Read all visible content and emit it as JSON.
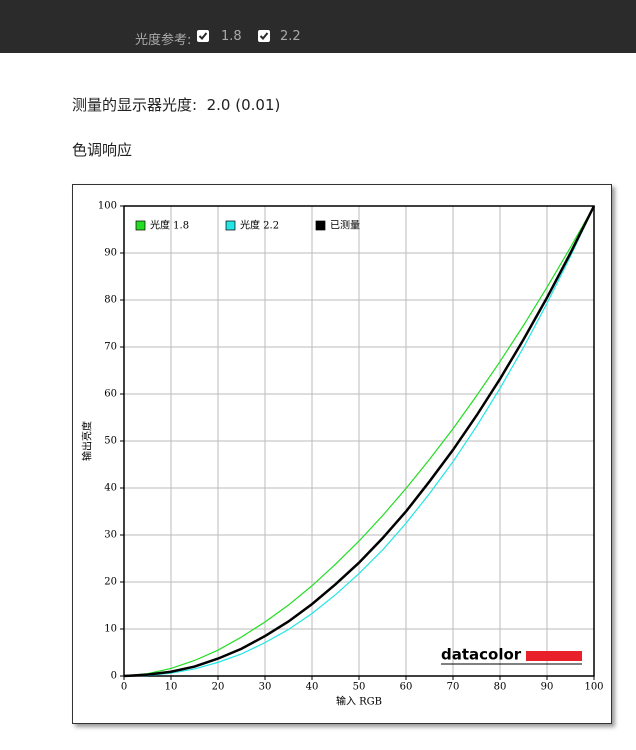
{
  "toolbar": {
    "label": "光度参考:",
    "options": [
      "1.8",
      "2.2"
    ]
  },
  "measured": {
    "label": "测量的显示器光度:",
    "value": "2.0 (0.01)"
  },
  "section_title": "色调响应",
  "chart_data": {
    "type": "line",
    "xlabel": "输入 RGB",
    "ylabel": "输出亮度",
    "logo": "datacolor",
    "x": [
      0,
      5,
      10,
      15,
      20,
      25,
      30,
      35,
      40,
      45,
      50,
      55,
      60,
      65,
      70,
      75,
      80,
      85,
      90,
      95,
      100
    ],
    "series": [
      {
        "name": "光度 1.8",
        "color": "#22dd22",
        "values": [
          0,
          0.5,
          1.6,
          3.3,
          5.5,
          8.3,
          11.5,
          15.1,
          19.2,
          23.8,
          28.7,
          34.1,
          39.9,
          46.1,
          52.6,
          59.6,
          66.9,
          74.6,
          82.7,
          91.2,
          100
        ]
      },
      {
        "name": "光度 2.2",
        "color": "#22e5e5",
        "values": [
          0,
          0.1,
          0.6,
          1.5,
          2.9,
          4.7,
          7.1,
          9.9,
          13.3,
          17.3,
          21.8,
          26.8,
          32.5,
          38.8,
          45.6,
          53.1,
          61.2,
          69.9,
          79.3,
          89.3,
          100
        ]
      },
      {
        "name": "已测量",
        "color": "#000000",
        "values": [
          0,
          0.3,
          0.9,
          2.0,
          3.7,
          5.8,
          8.5,
          11.6,
          15.3,
          19.5,
          24.1,
          29.3,
          35.0,
          41.4,
          48.1,
          55.4,
          63.2,
          71.6,
          80.5,
          90.0,
          100
        ]
      }
    ],
    "xlim": [
      0,
      100
    ],
    "ylim": [
      0,
      100
    ],
    "xticks": [
      0,
      10,
      20,
      30,
      40,
      50,
      60,
      70,
      80,
      90,
      100
    ],
    "yticks": [
      0,
      10,
      20,
      30,
      40,
      50,
      60,
      70,
      80,
      90,
      100
    ],
    "grid": true,
    "legend": "top-left"
  }
}
